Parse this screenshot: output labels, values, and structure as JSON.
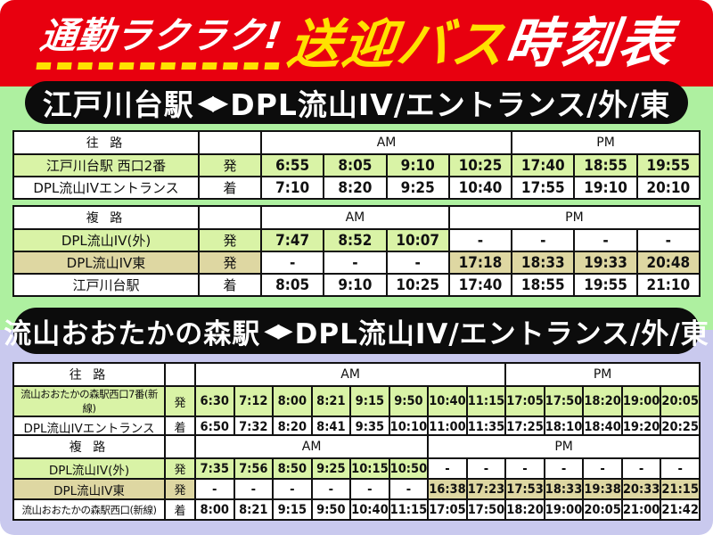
{
  "banner": {
    "catchphrase": "通勤ラクラク!",
    "product": "送迎バス",
    "title": "時刻表"
  },
  "colors": {
    "banner_red": "#e8000f",
    "accent_yellow": "#ffe200",
    "section1_bg": "#aef0a0",
    "section2_bg": "#c9c9ee",
    "pill_black": "#0c0c0c",
    "row_green": "#d9f3a6",
    "row_tan": "#ded7a2"
  },
  "sections": [
    {
      "title_from": "江戸川台駅",
      "title_arrow": "◀▶",
      "title_to": "DPL流山IV/エントランス/外/東",
      "tables": [
        {
          "direction": "往 路",
          "am_label": "AM",
          "pm_label": "PM",
          "am_cols": 4,
          "pm_cols": 3,
          "rows": [
            {
              "label": "江戸川台駅 西口2番",
              "mark": "発",
              "style": "green",
              "times": [
                "6:55",
                "8:05",
                "9:10",
                "10:25",
                "17:40",
                "18:55",
                "19:55"
              ]
            },
            {
              "label": "DPL流山IVエントランス",
              "mark": "着",
              "style": "white",
              "times": [
                "7:10",
                "8:20",
                "9:25",
                "10:40",
                "17:55",
                "19:10",
                "20:10"
              ]
            }
          ]
        },
        {
          "direction": "複 路",
          "am_label": "AM",
          "pm_label": "PM",
          "am_cols": 3,
          "pm_cols": 4,
          "rows": [
            {
              "label": "DPL流山IV(外)",
              "mark": "発",
              "style": "green",
              "times": [
                "7:47",
                "8:52",
                "10:07",
                "-",
                "-",
                "-",
                "-"
              ]
            },
            {
              "label": "DPL流山IV東",
              "mark": "発",
              "style": "tan",
              "times": [
                "-",
                "-",
                "-",
                "17:18",
                "18:33",
                "19:33",
                "20:48"
              ]
            },
            {
              "label": "江戸川台駅",
              "mark": "着",
              "style": "white",
              "times": [
                "8:05",
                "9:10",
                "10:25",
                "17:40",
                "18:55",
                "19:55",
                "21:10"
              ]
            }
          ]
        }
      ]
    },
    {
      "title_from": "流山おおたかの森駅",
      "title_arrow": "◀▶",
      "title_to": "DPL流山IV/エントランス/外/東",
      "tables": [
        {
          "direction": "往 路",
          "am_label": "AM",
          "pm_label": "PM",
          "am_cols": 8,
          "pm_cols": 5,
          "rows": [
            {
              "label": "流山おおたかの森駅西口7番(新線)",
              "mark": "発",
              "style": "green",
              "small": true,
              "times": [
                "6:30",
                "7:12",
                "8:00",
                "8:21",
                "9:15",
                "9:50",
                "10:40",
                "11:15",
                "17:05",
                "17:50",
                "18:20",
                "19:00",
                "20:05"
              ]
            },
            {
              "label": "DPL流山IVエントランス",
              "mark": "着",
              "style": "white",
              "times": [
                "6:50",
                "7:32",
                "8:20",
                "8:41",
                "9:35",
                "10:10",
                "11:00",
                "11:35",
                "17:25",
                "18:10",
                "18:40",
                "19:20",
                "20:25"
              ]
            }
          ]
        },
        {
          "direction": "複 路",
          "am_label": "AM",
          "pm_label": "PM",
          "am_cols": 6,
          "pm_cols": 7,
          "rows": [
            {
              "label": "DPL流山IV(外)",
              "mark": "発",
              "style": "green",
              "times": [
                "7:35",
                "7:56",
                "8:50",
                "9:25",
                "10:15",
                "10:50",
                "-",
                "-",
                "-",
                "-",
                "-",
                "-",
                "-"
              ]
            },
            {
              "label": "DPL流山IV東",
              "mark": "発",
              "style": "tan",
              "times": [
                "-",
                "-",
                "-",
                "-",
                "-",
                "-",
                "16:38",
                "17:23",
                "17:53",
                "18:33",
                "19:38",
                "20:33",
                "21:15"
              ]
            },
            {
              "label": "流山おおたかの森駅西口(新線)",
              "mark": "着",
              "style": "white",
              "small": true,
              "times": [
                "8:00",
                "8:21",
                "9:15",
                "9:50",
                "10:40",
                "11:15",
                "17:05",
                "17:50",
                "18:20",
                "19:00",
                "20:05",
                "21:00",
                "21:42"
              ]
            }
          ]
        }
      ]
    }
  ]
}
